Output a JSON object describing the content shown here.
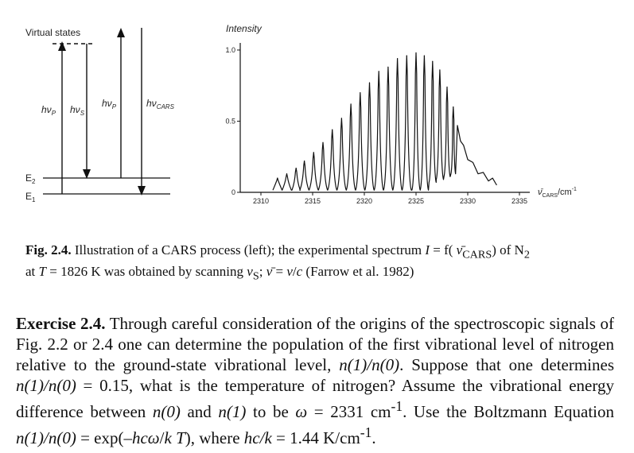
{
  "diagram": {
    "virtual_states": "Virtual states",
    "hvp_1": "hν",
    "hvp_1_sub": "P",
    "hvs": "hν",
    "hvs_sub": "S",
    "hvp_2": "hν",
    "hvp_2_sub": "P",
    "hvcars": "hν",
    "hvcars_sub": "CARS",
    "e2": "E",
    "e2_sub": "2",
    "e1": "E",
    "e1_sub": "1"
  },
  "chart_data": {
    "type": "line",
    "ylabel": "Intensity",
    "xlabel_main": "ν̄",
    "xlabel_sub": "CARS",
    "xlabel_unit": "/cm",
    "xlabel_exp": "-1",
    "xlim": [
      2308,
      2336
    ],
    "ylim": [
      0,
      1.05
    ],
    "x_ticks": [
      2310,
      2315,
      2320,
      2325,
      2330,
      2335
    ],
    "y_ticks": [
      "1.0",
      "0.5",
      "0"
    ],
    "peaks": [
      {
        "x": 2311.6,
        "y": 0.1
      },
      {
        "x": 2312.5,
        "y": 0.13
      },
      {
        "x": 2313.4,
        "y": 0.17
      },
      {
        "x": 2314.2,
        "y": 0.22
      },
      {
        "x": 2315.1,
        "y": 0.28
      },
      {
        "x": 2316.0,
        "y": 0.35
      },
      {
        "x": 2316.9,
        "y": 0.44
      },
      {
        "x": 2317.8,
        "y": 0.52
      },
      {
        "x": 2318.7,
        "y": 0.62
      },
      {
        "x": 2319.6,
        "y": 0.7
      },
      {
        "x": 2320.5,
        "y": 0.77
      },
      {
        "x": 2321.4,
        "y": 0.85
      },
      {
        "x": 2322.3,
        "y": 0.88
      },
      {
        "x": 2323.2,
        "y": 0.94
      },
      {
        "x": 2324.1,
        "y": 0.96
      },
      {
        "x": 2325.0,
        "y": 0.98
      },
      {
        "x": 2325.8,
        "y": 0.96
      },
      {
        "x": 2326.6,
        "y": 0.92
      },
      {
        "x": 2327.3,
        "y": 0.86
      },
      {
        "x": 2328.0,
        "y": 0.74
      },
      {
        "x": 2328.6,
        "y": 0.6
      }
    ],
    "tail": [
      {
        "x": 2329.0,
        "y": 0.45
      },
      {
        "x": 2329.3,
        "y": 0.38
      },
      {
        "x": 2329.6,
        "y": 0.31
      },
      {
        "x": 2330.0,
        "y": 0.25
      },
      {
        "x": 2330.5,
        "y": 0.19
      },
      {
        "x": 2331.0,
        "y": 0.15
      },
      {
        "x": 2331.5,
        "y": 0.12
      },
      {
        "x": 2332.0,
        "y": 0.1
      },
      {
        "x": 2332.4,
        "y": 0.08
      },
      {
        "x": 2332.8,
        "y": 0.07
      }
    ]
  },
  "caption": {
    "label": "Fig. 2.4.",
    "text_1": " Illustration of a CARS process (left); the experimental spectrum ",
    "I": "I",
    "text_2": " = f( ",
    "vbar": "ν̄",
    "cars_sub": "CARS",
    "text_3": ") of N",
    "n2_sub": "2",
    "line2_1": "at ",
    "T": "T",
    "line2_2": " = 1826 K was obtained by scanning ",
    "vs": "ν",
    "vs_sub": "S",
    "line2_3": "; ",
    "vbar2": "ν̄",
    "line2_4": " = ",
    "v": "ν",
    "slash": "/",
    "c": "c",
    "line2_5": " (Farrow et al. 1982)"
  },
  "exercise": {
    "label": "Exercise 2.4.",
    "t1": " Through careful consideration of the origins of the spectroscopic signals of Fig. 2.2 or 2.4 one can determine the population of the first vibrational level of nitrogen relative to the ground-state vibrational level, ",
    "ratio1": "n(1)/n(0)",
    "t2": ". Suppose that one determines ",
    "ratio2": "n(1)/n(0)",
    "t3": " = 0.15, what is the temperature of nitrogen? Assume the vibrational energy difference between ",
    "n0": "n(0)",
    "t4": " and ",
    "n1": "n(1)",
    "t5": " to be ",
    "omega": "ω",
    "t6": " = 2331 cm",
    "exp1": "-1",
    "t7": ". Use the Boltzmann Equation ",
    "ratio3": "n(1)/n(0)",
    "t8": " = exp(–",
    "hcw": "hcω",
    "t9": "/",
    "k": "k",
    "t10": " ",
    "T": "T",
    "t11": "), where ",
    "hck": "hc/k",
    "t12": " = 1.44 K/cm",
    "exp2": "-1",
    "t13": "."
  }
}
